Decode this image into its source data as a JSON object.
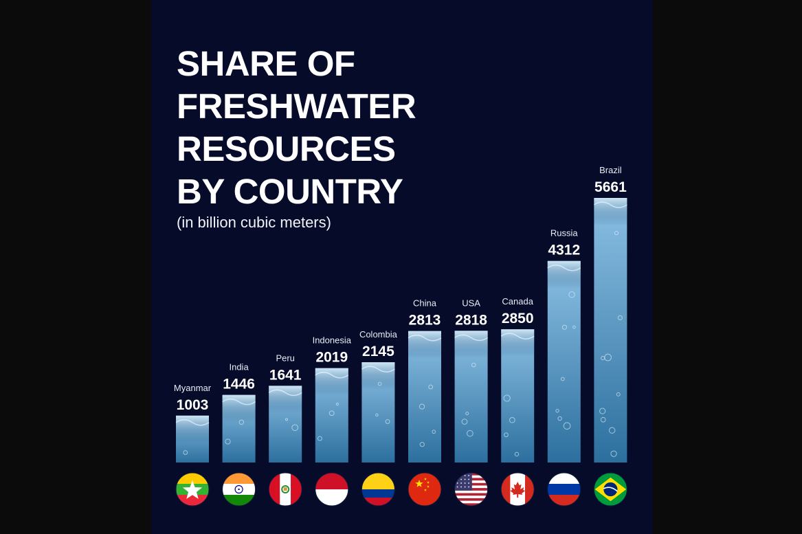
{
  "chart_data": {
    "type": "bar",
    "title": "SHARE OF\nFRESHWATER\nRESOURCES\nBY COUNTRY",
    "subtitle": "(in billion cubic meters)",
    "categories": [
      "Myanmar",
      "India",
      "Peru",
      "Indonesia",
      "Colombia",
      "China",
      "USA",
      "Canada",
      "Russia",
      "Brazil"
    ],
    "values": [
      1003,
      1446,
      1641,
      2019,
      2145,
      2813,
      2818,
      2850,
      4312,
      5661
    ],
    "flags": [
      "myanmar-flag-icon",
      "india-flag-icon",
      "peru-flag-icon",
      "indonesia-flag-icon",
      "colombia-flag-icon",
      "china-flag-icon",
      "usa-flag-icon",
      "canada-flag-icon",
      "russia-flag-icon",
      "brazil-flag-icon"
    ],
    "colors": {
      "background": "#060b2a",
      "bar_top": "#8cc0e4",
      "bar_bottom": "#2c6f9e",
      "text": "#ffffff"
    }
  }
}
